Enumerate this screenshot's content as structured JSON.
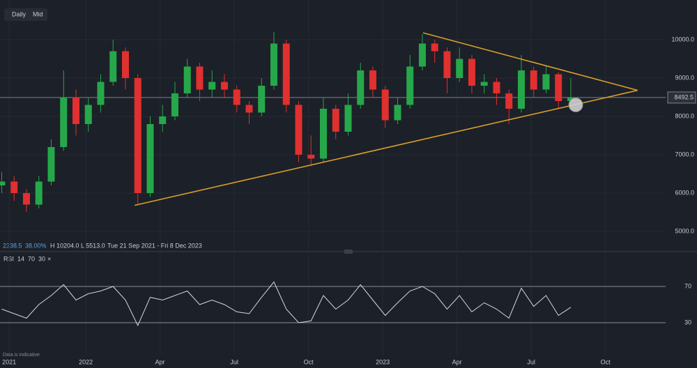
{
  "toolbar": {
    "buttons": [
      "Daily",
      "Mid"
    ]
  },
  "info": {
    "change": "2338.5",
    "change_pct": "38.00%",
    "high": "H 10204.0",
    "low": "L 5513.0",
    "range": "Tue 21 Sep 2021 - Fri 8 Dec 2023"
  },
  "footnote": "Data is indicative",
  "chart_data": {
    "type": "candlestick",
    "x": [
      8.6,
      9.1,
      9.6,
      10.1,
      10.6,
      11.1,
      11.6,
      12.1,
      12.6,
      13.1,
      13.6,
      14.1,
      14.6,
      15.1,
      15.6,
      16.1,
      16.6,
      17.1,
      17.6,
      18.1,
      18.6,
      19.1,
      19.6,
      20.1,
      20.6,
      21.1,
      21.6,
      22.1,
      22.6,
      23.1,
      23.6,
      24.1,
      24.6,
      25.1,
      25.6,
      26.1,
      26.6,
      27.1,
      27.6,
      28.1,
      28.6,
      29.1,
      29.6,
      30.1,
      30.6,
      31.1,
      31.6
    ],
    "open": [
      6200,
      6300,
      6000,
      5700,
      6300,
      7200,
      8500,
      7800,
      8300,
      8900,
      9700,
      9000,
      6000,
      7800,
      8000,
      8600,
      9300,
      8700,
      8900,
      8700,
      8300,
      8100,
      8800,
      9900,
      8300,
      7000,
      6900,
      8200,
      7600,
      8300,
      9200,
      8700,
      7900,
      8300,
      9300,
      9900,
      9700,
      9000,
      9500,
      8800,
      8900,
      8600,
      8200,
      9200,
      8700,
      9100,
      8400
    ],
    "high": [
      6550,
      6450,
      6100,
      6450,
      7400,
      9200,
      8700,
      8500,
      9100,
      10000,
      9800,
      9100,
      8000,
      8300,
      8900,
      9500,
      9400,
      9200,
      9100,
      8800,
      8400,
      9000,
      10204,
      10000,
      8400,
      7500,
      8500,
      8300,
      8600,
      9400,
      9300,
      8800,
      8500,
      9600,
      10150,
      10000,
      9800,
      9800,
      9600,
      9100,
      9000,
      8700,
      9600,
      9300,
      9300,
      9150,
      9000
    ],
    "low": [
      6000,
      5800,
      5513,
      5600,
      6200,
      7100,
      7500,
      7600,
      8100,
      8800,
      8700,
      5700,
      5900,
      7600,
      7900,
      8500,
      8400,
      8500,
      8500,
      8100,
      7800,
      8000,
      8700,
      8100,
      6800,
      6700,
      6800,
      7400,
      7500,
      8200,
      8500,
      7700,
      7800,
      8200,
      9200,
      9400,
      8600,
      8900,
      8600,
      8600,
      8300,
      7800,
      8100,
      8500,
      8600,
      8200,
      8350
    ],
    "close": [
      6300,
      6000,
      5700,
      6300,
      7200,
      8500,
      7800,
      8300,
      8900,
      9700,
      9000,
      6000,
      7800,
      8000,
      8600,
      9300,
      8700,
      8900,
      8700,
      8300,
      8100,
      8800,
      9900,
      8300,
      7000,
      6900,
      8200,
      7600,
      8300,
      9200,
      8700,
      7900,
      8300,
      9300,
      9900,
      9700,
      9000,
      9500,
      8800,
      8900,
      8600,
      8200,
      9200,
      8700,
      9100,
      8400,
      8492.5
    ],
    "up_color": "#26a84a",
    "down_color": "#e0302f",
    "xlim": [
      8.53,
      36.7
    ],
    "ylim": [
      4855,
      11036
    ],
    "xticks": [
      {
        "value": 8.9,
        "label": "2021"
      },
      {
        "value": 12,
        "label": "2022"
      },
      {
        "value": 15,
        "label": "Apr"
      },
      {
        "value": 18,
        "label": "Jul"
      },
      {
        "value": 21,
        "label": "Oct"
      },
      {
        "value": 24,
        "label": "2023"
      },
      {
        "value": 27,
        "label": "Apr"
      },
      {
        "value": 30,
        "label": "Jul"
      },
      {
        "value": 33,
        "label": "Oct"
      }
    ],
    "yticks": [
      {
        "value": 5000,
        "label": "5000.0"
      },
      {
        "value": 6000,
        "label": "6000.0"
      },
      {
        "value": 7000,
        "label": "7000.0"
      },
      {
        "value": 8000,
        "label": "8000.0"
      },
      {
        "value": 9000,
        "label": "9000.0"
      },
      {
        "value": 10000,
        "label": "10000.0"
      }
    ],
    "grid": true,
    "current_price": {
      "value": 8492.5,
      "label": "8492.5"
    },
    "trendline_color": "#d9a02a",
    "trendlines": [
      {
        "x": [
          25.63,
          34.3
        ],
        "y": [
          10180,
          8680
        ]
      },
      {
        "x": [
          13.97,
          34.3
        ],
        "y": [
          5680,
          8680
        ]
      }
    ],
    "marker": {
      "x": 31.8,
      "y": 8300
    },
    "rsi": {
      "label": "RSI",
      "params": [
        "14",
        "70",
        "30"
      ],
      "close_icon": "×",
      "color": "#d8d8d8",
      "ylim": [
        0,
        100
      ],
      "yticks": [
        30,
        70
      ],
      "values": [
        45,
        40,
        35,
        50,
        60,
        72,
        55,
        62,
        65,
        70,
        55,
        27,
        58,
        55,
        60,
        65,
        50,
        55,
        50,
        42,
        40,
        58,
        75,
        45,
        30,
        32,
        60,
        45,
        55,
        72,
        55,
        38,
        52,
        65,
        70,
        62,
        45,
        60,
        42,
        52,
        45,
        35,
        68,
        48,
        60,
        38,
        47
      ]
    }
  }
}
